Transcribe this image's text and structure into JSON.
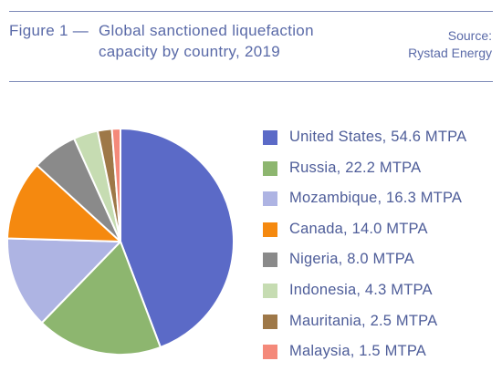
{
  "header": {
    "figure_label": "Figure 1 —",
    "title": "Global sanctioned liquefaction capacity by country, 2019",
    "source_line1": "Source:",
    "source_line2": "Rystad Energy"
  },
  "chart_data": {
    "type": "pie",
    "title": "Figure 1 — Global sanctioned liquefaction capacity by country, 2019",
    "legend_position": "right",
    "slices": [
      {
        "label": "United States, 54.6 MTPA",
        "category": "United States",
        "value": 54.6,
        "color": "#5b6ac7"
      },
      {
        "label": "Russia, 22.2 MTPA",
        "category": "Russia",
        "value": 22.2,
        "color": "#8db66f"
      },
      {
        "label": "Mozambique, 16.3 MTPA",
        "category": "Mozambique",
        "value": 16.3,
        "color": "#aeb4e3"
      },
      {
        "label": "Canada, 14.0 MTPA",
        "category": "Canada",
        "value": 14.0,
        "color": "#f5890f"
      },
      {
        "label": "Nigeria, 8.0 MTPA",
        "category": "Nigeria",
        "value": 8.0,
        "color": "#8a8a8a"
      },
      {
        "label": "Indonesia, 4.3 MTPA",
        "category": "Indonesia",
        "value": 4.3,
        "color": "#c6dcb2"
      },
      {
        "label": "Mauritania, 2.5 MTPA",
        "category": "Mauritania",
        "value": 2.5,
        "color": "#9e7848"
      },
      {
        "label": "Malaysia, 1.5 MTPA",
        "category": "Malaysia",
        "value": 1.5,
        "color": "#f4897a"
      }
    ]
  }
}
